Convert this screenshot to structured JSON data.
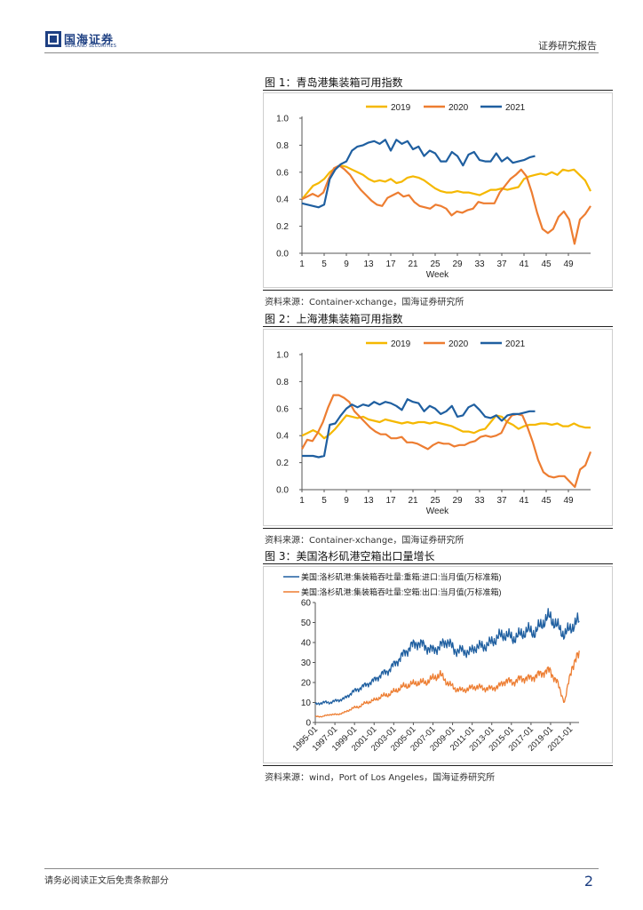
{
  "header": {
    "logo_cn": "国海证券",
    "logo_en": "SEALAND SECURITIES",
    "report_type": "证券研究报告"
  },
  "footer": {
    "disclaimer": "请务必阅读正文后免责条款部分",
    "page_number": "2"
  },
  "colors": {
    "y2019": "#f5b800",
    "y2020": "#ed7d31",
    "y2021": "#1f5fa0",
    "brand": "#1d3f82"
  },
  "figures": [
    {
      "title": "图 1：青岛港集装箱可用指数",
      "source": "资料来源：Container-xchange，国海证券研究所"
    },
    {
      "title": "图 2：上海港集装箱可用指数",
      "source": "资料来源：Container-xchange，国海证券研究所"
    },
    {
      "title": "图 3：美国洛杉矶港空箱出口量增长",
      "source": "资料来源：wind，Port of Los Angeles，国海证券研究所"
    }
  ],
  "chart_data": [
    {
      "type": "line",
      "title": "",
      "xlabel": "Week",
      "ylabel": "",
      "ylim": [
        0,
        1
      ],
      "yticks": [
        "0.0",
        "0.2",
        "0.4",
        "0.6",
        "0.8",
        "1.0"
      ],
      "xticks": [
        "1",
        "5",
        "9",
        "13",
        "17",
        "21",
        "25",
        "29",
        "33",
        "37",
        "41",
        "45",
        "49"
      ],
      "legend": "top-center",
      "series": [
        {
          "name": "2019",
          "values": [
            0.4,
            0.45,
            0.5,
            0.52,
            0.55,
            0.6,
            0.63,
            0.65,
            0.64,
            0.62,
            0.6,
            0.58,
            0.55,
            0.53,
            0.54,
            0.53,
            0.55,
            0.52,
            0.53,
            0.56,
            0.57,
            0.56,
            0.54,
            0.51,
            0.48,
            0.46,
            0.45,
            0.45,
            0.46,
            0.45,
            0.45,
            0.44,
            0.43,
            0.45,
            0.47,
            0.47,
            0.48,
            0.47,
            0.48,
            0.49,
            0.55,
            0.57,
            0.58,
            0.59,
            0.58,
            0.6,
            0.58,
            0.62,
            0.61,
            0.62,
            0.58,
            0.54,
            0.46
          ]
        },
        {
          "name": "2020",
          "values": [
            0.4,
            0.42,
            0.44,
            0.42,
            0.45,
            0.55,
            0.63,
            0.65,
            0.62,
            0.58,
            0.52,
            0.47,
            0.43,
            0.39,
            0.36,
            0.35,
            0.41,
            0.43,
            0.45,
            0.42,
            0.43,
            0.38,
            0.35,
            0.34,
            0.33,
            0.36,
            0.35,
            0.33,
            0.28,
            0.31,
            0.3,
            0.32,
            0.33,
            0.38,
            0.37,
            0.37,
            0.37,
            0.45,
            0.5,
            0.55,
            0.58,
            0.62,
            0.57,
            0.45,
            0.3,
            0.18,
            0.15,
            0.18,
            0.27,
            0.31,
            0.25,
            0.07,
            0.25,
            0.29,
            0.35
          ]
        },
        {
          "name": "2021",
          "values": [
            0.37,
            0.36,
            0.35,
            0.34,
            0.36,
            0.55,
            0.62,
            0.66,
            0.68,
            0.76,
            0.79,
            0.8,
            0.82,
            0.83,
            0.81,
            0.84,
            0.76,
            0.84,
            0.81,
            0.83,
            0.77,
            0.79,
            0.72,
            0.76,
            0.74,
            0.68,
            0.68,
            0.75,
            0.72,
            0.65,
            0.73,
            0.75,
            0.69,
            0.68,
            0.68,
            0.74,
            0.68,
            0.71,
            0.67,
            0.68,
            0.69,
            0.71,
            0.72
          ]
        }
      ]
    },
    {
      "type": "line",
      "title": "",
      "xlabel": "Week",
      "ylabel": "",
      "ylim": [
        0,
        1
      ],
      "yticks": [
        "0.0",
        "0.2",
        "0.4",
        "0.6",
        "0.8",
        "1.0"
      ],
      "xticks": [
        "1",
        "5",
        "9",
        "13",
        "17",
        "21",
        "25",
        "29",
        "33",
        "37",
        "41",
        "45",
        "49"
      ],
      "legend": "top-center",
      "series": [
        {
          "name": "2019",
          "values": [
            0.4,
            0.42,
            0.44,
            0.42,
            0.38,
            0.41,
            0.45,
            0.5,
            0.55,
            0.54,
            0.53,
            0.54,
            0.52,
            0.51,
            0.5,
            0.52,
            0.51,
            0.5,
            0.49,
            0.5,
            0.49,
            0.5,
            0.5,
            0.49,
            0.5,
            0.49,
            0.48,
            0.47,
            0.45,
            0.43,
            0.43,
            0.42,
            0.44,
            0.45,
            0.5,
            0.55,
            0.54,
            0.5,
            0.48,
            0.45,
            0.47,
            0.48,
            0.48,
            0.49,
            0.49,
            0.48,
            0.49,
            0.47,
            0.47,
            0.49,
            0.47,
            0.46,
            0.46
          ]
        },
        {
          "name": "2020",
          "values": [
            0.3,
            0.37,
            0.36,
            0.42,
            0.5,
            0.61,
            0.7,
            0.7,
            0.68,
            0.65,
            0.58,
            0.54,
            0.5,
            0.46,
            0.43,
            0.41,
            0.41,
            0.38,
            0.38,
            0.39,
            0.35,
            0.35,
            0.34,
            0.32,
            0.3,
            0.33,
            0.35,
            0.34,
            0.34,
            0.32,
            0.33,
            0.33,
            0.35,
            0.36,
            0.39,
            0.4,
            0.39,
            0.4,
            0.42,
            0.5,
            0.55,
            0.56,
            0.55,
            0.46,
            0.35,
            0.22,
            0.13,
            0.1,
            0.09,
            0.1,
            0.1,
            0.06,
            0.02,
            0.15,
            0.18,
            0.28
          ]
        },
        {
          "name": "2021",
          "values": [
            0.25,
            0.25,
            0.25,
            0.24,
            0.25,
            0.48,
            0.49,
            0.55,
            0.6,
            0.63,
            0.61,
            0.63,
            0.62,
            0.65,
            0.63,
            0.65,
            0.64,
            0.62,
            0.59,
            0.67,
            0.65,
            0.64,
            0.58,
            0.62,
            0.6,
            0.56,
            0.58,
            0.62,
            0.54,
            0.55,
            0.61,
            0.63,
            0.59,
            0.54,
            0.53,
            0.55,
            0.51,
            0.55,
            0.56,
            0.56,
            0.57,
            0.58,
            0.58
          ]
        }
      ]
    },
    {
      "type": "line",
      "title": "",
      "xlabel": "",
      "ylabel": "",
      "ylim": [
        0,
        60
      ],
      "yticks": [
        "0",
        "10",
        "20",
        "30",
        "40",
        "50",
        "60"
      ],
      "x_start": "1995-01",
      "x_end": "2021-12",
      "xticks": [
        "1995-01",
        "1997-01",
        "1999-01",
        "2001-01",
        "2003-01",
        "2005-01",
        "2007-01",
        "2009-01",
        "2011-01",
        "2013-01",
        "2015-01",
        "2017-01",
        "2019-01",
        "2021-01"
      ],
      "legend": "top-left",
      "series": [
        {
          "name": "美国:洛杉矶港:集装箱吞吐量:重箱:进口:当月值(万标准箱)",
          "values": [
            9,
            10,
            10,
            11,
            12,
            15,
            17,
            19,
            21,
            24,
            26,
            30,
            34,
            38,
            40,
            38,
            36,
            38,
            41,
            36,
            36,
            35,
            38,
            38,
            40,
            43,
            44,
            42,
            44,
            46,
            45,
            50,
            53,
            48,
            44,
            48,
            51
          ]
        },
        {
          "name": "美国:洛杉矶港:集装箱吞吐量:空箱:出口:当月值(万标准箱)",
          "values": [
            3,
            3,
            4,
            4,
            5,
            7,
            8,
            10,
            11,
            13,
            14,
            16,
            18,
            19,
            20,
            20,
            22,
            24,
            20,
            17,
            16,
            17,
            18,
            17,
            17,
            18,
            21,
            20,
            22,
            22,
            23,
            25,
            26,
            20,
            10,
            28,
            34
          ]
        }
      ]
    }
  ]
}
